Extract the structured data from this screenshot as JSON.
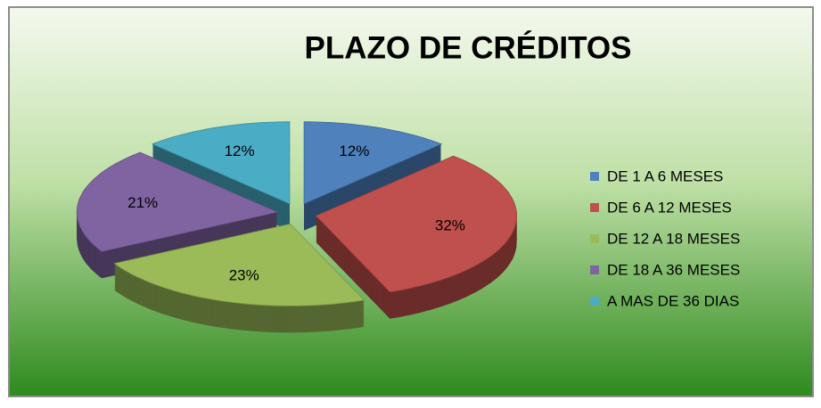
{
  "chart_data": {
    "type": "pie",
    "title": "PLAZO DE CRÉDITOS",
    "categories": [
      "DE 1 A 6 MESES",
      "DE 6 A 12 MESES",
      "DE 12 A 18 MESES",
      "DE 18 A 36 MESES",
      "A MAS DE 36 DIAS"
    ],
    "values": [
      12,
      32,
      23,
      21,
      12
    ],
    "value_labels": [
      "12%",
      "32%",
      "23%",
      "21%",
      "12%"
    ],
    "colors": [
      "#4f81bd",
      "#c0504d",
      "#9bbb59",
      "#8064a2",
      "#4bacc6"
    ],
    "legend": "right"
  }
}
